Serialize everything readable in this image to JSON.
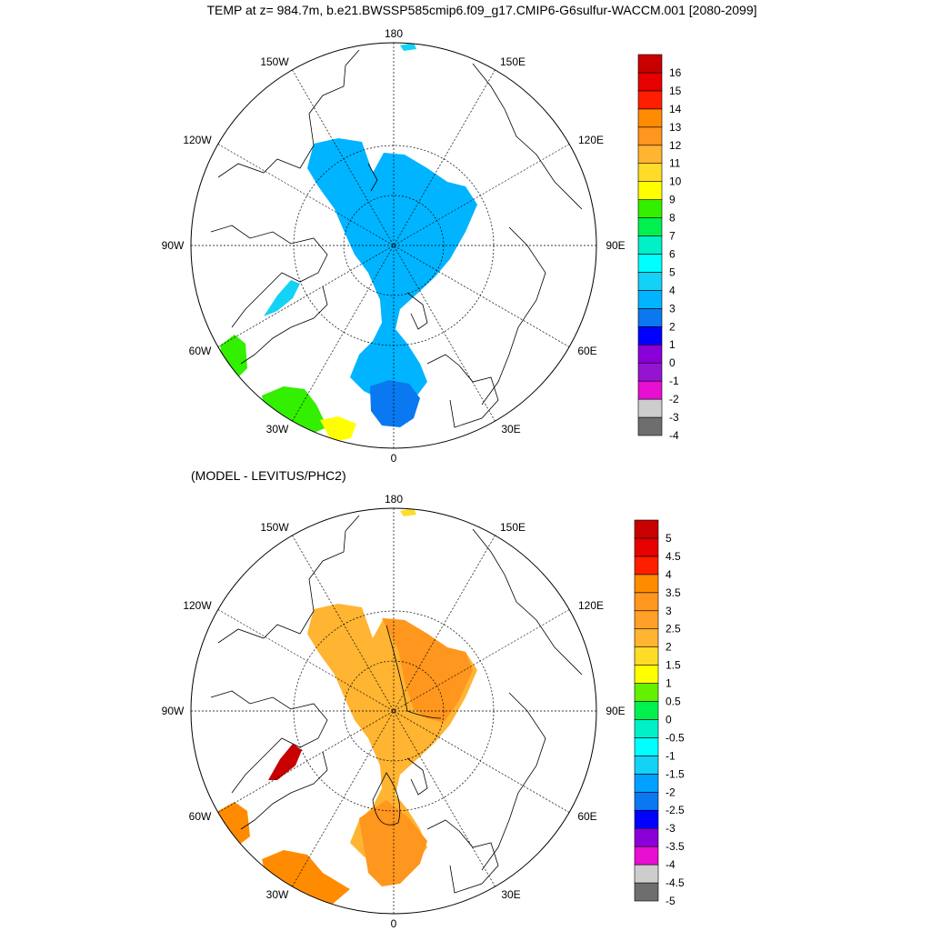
{
  "title": "TEMP at z= 984.7m, b.e21.BWSSP585cmip6.f09_g17.CMIP6-G6sulfur-WACCM.001 [2080-2099]",
  "panels": [
    {
      "subtitle": "",
      "lon_labels": {
        "180": "180",
        "150W": "150W",
        "150E": "150E",
        "120W": "120W",
        "120E": "120E",
        "90W": "90W",
        "90E": "90E",
        "60W": "60W",
        "60E": "60E",
        "30W": "30W",
        "30E": "30E",
        "0": "0"
      },
      "colorbar": {
        "labels": [
          "-4",
          "-3",
          "-2",
          "-1",
          "0",
          "1",
          "2",
          "3",
          "4",
          "5",
          "6",
          "7",
          "8",
          "9",
          "10",
          "11",
          "12",
          "13",
          "14",
          "15",
          "16"
        ],
        "colors": [
          "#6e6e6e",
          "#cdcdcd",
          "#e60fd2",
          "#9414d2",
          "#8a00d8",
          "#0000ff",
          "#0a78f0",
          "#00b4ff",
          "#14d2f5",
          "#00ffff",
          "#00f0c8",
          "#00f050",
          "#32f000",
          "#ffff00",
          "#ffdc28",
          "#ffb432",
          "#ff961e",
          "#ff8c00",
          "#ff1e00",
          "#e60000",
          "#c80000"
        ]
      },
      "colors": {
        "main": "#00b4ff",
        "cold": "#0a78f0",
        "warm": "#32f000",
        "mid": "#14d2f5",
        "hot": "#ffff00"
      }
    },
    {
      "subtitle": "(MODEL - LEVITUS/PHC2)",
      "lon_labels": {
        "180": "180",
        "150W": "150W",
        "150E": "150E",
        "120W": "120W",
        "120E": "120E",
        "90W": "90W",
        "90E": "90E",
        "60W": "60W",
        "60E": "60E",
        "30W": "30W",
        "30E": "30E",
        "0": "0"
      },
      "colorbar": {
        "labels": [
          "-5",
          "-4.5",
          "-4",
          "-3.5",
          "-3",
          "-2.5",
          "-2",
          "-1.5",
          "-1",
          "-0.5",
          "0",
          "0.5",
          "1",
          "1.5",
          "2",
          "2.5",
          "3",
          "3.5",
          "4",
          "4.5",
          "5"
        ],
        "colors": [
          "#6e6e6e",
          "#cdcdcd",
          "#e60fd2",
          "#8a00d8",
          "#0000ff",
          "#0a78f0",
          "#00a0ff",
          "#14d2f5",
          "#00ffff",
          "#00f0c8",
          "#00f050",
          "#64f000",
          "#ffff00",
          "#ffdc28",
          "#ffb432",
          "#ffa028",
          "#ff961e",
          "#ff8c00",
          "#ff1e00",
          "#e60000",
          "#c80000"
        ]
      },
      "colors": {
        "main": "#ffb432",
        "cold": "#ff961e",
        "warm": "#ff8c00",
        "mid": "#ffdc28",
        "hot": "#c80000"
      }
    }
  ]
}
